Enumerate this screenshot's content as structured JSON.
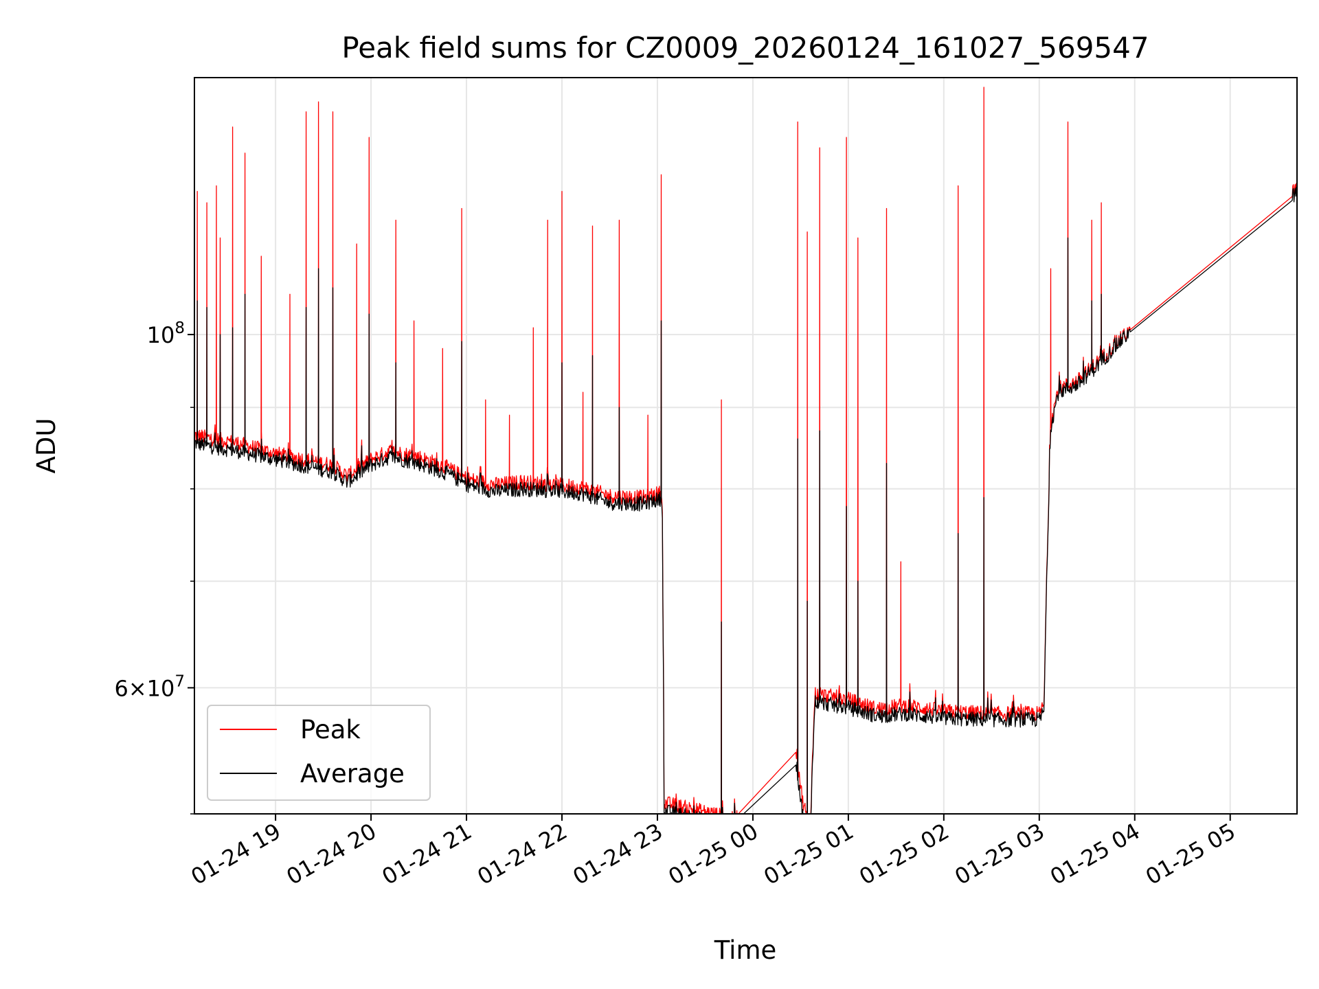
{
  "chart_data": {
    "type": "line",
    "title": "Peak field sums for CZ0009_20260124_161027_569547",
    "xlabel": "Time",
    "ylabel": "ADU",
    "yscale": "log",
    "ylim": [
      50000000,
      145000000
    ],
    "xlim_hours": [
      18.15,
      29.7
    ],
    "x_ticks": [
      {
        "hour": 19,
        "label": "01-24 19"
      },
      {
        "hour": 20,
        "label": "01-24 20"
      },
      {
        "hour": 21,
        "label": "01-24 21"
      },
      {
        "hour": 22,
        "label": "01-24 22"
      },
      {
        "hour": 23,
        "label": "01-24 23"
      },
      {
        "hour": 24,
        "label": "01-25 00"
      },
      {
        "hour": 25,
        "label": "01-25 01"
      },
      {
        "hour": 26,
        "label": "01-25 02"
      },
      {
        "hour": 27,
        "label": "01-25 03"
      },
      {
        "hour": 28,
        "label": "01-25 04"
      },
      {
        "hour": 29,
        "label": "01-25 05"
      }
    ],
    "y_major_ticks": [
      {
        "value": 100000000,
        "base": "10",
        "exp": "8"
      },
      {
        "value": 60000000,
        "mant": "6",
        "base": "10",
        "exp": "7"
      }
    ],
    "y_minor_gridlines": [
      50000000,
      70000000,
      80000000,
      90000000
    ],
    "grid": true,
    "legend_position": "lower-left",
    "series": [
      {
        "name": "Peak",
        "color": "#ff0000",
        "baseline": [
          [
            18.15,
            86500000
          ],
          [
            18.35,
            86000000
          ],
          [
            18.6,
            85500000
          ],
          [
            19.0,
            84200000
          ],
          [
            19.3,
            83500000
          ],
          [
            19.6,
            82800000
          ],
          [
            19.75,
            81500000
          ],
          [
            20.0,
            83500000
          ],
          [
            20.2,
            84500000
          ],
          [
            20.5,
            83800000
          ],
          [
            20.8,
            82500000
          ],
          [
            21.0,
            81200000
          ],
          [
            21.3,
            80500000
          ],
          [
            21.6,
            80800000
          ],
          [
            21.9,
            80500000
          ],
          [
            22.2,
            80200000
          ],
          [
            22.5,
            79200000
          ],
          [
            22.85,
            79000000
          ],
          [
            23.05,
            79600000
          ],
          [
            23.07,
            50800000
          ],
          [
            23.4,
            50300000
          ],
          [
            23.6,
            50000000
          ],
          [
            23.8,
            49600000
          ],
          [
            24.45,
            55000000
          ],
          [
            24.52,
            51000000
          ],
          [
            24.6,
            49000000
          ],
          [
            24.65,
            59500000
          ],
          [
            25.0,
            59000000
          ],
          [
            25.3,
            58200000
          ],
          [
            25.6,
            58500000
          ],
          [
            26.0,
            58000000
          ],
          [
            26.5,
            57800000
          ],
          [
            27.0,
            57800000
          ],
          [
            27.05,
            58500000
          ],
          [
            27.12,
            88000000
          ],
          [
            27.2,
            92500000
          ],
          [
            27.4,
            93500000
          ],
          [
            27.6,
            96000000
          ],
          [
            27.9,
            100000000
          ],
          [
            29.7,
            123500000
          ]
        ],
        "spikes": [
          [
            18.18,
            123000000
          ],
          [
            18.28,
            121000000
          ],
          [
            18.38,
            124000000
          ],
          [
            18.42,
            115000000
          ],
          [
            18.55,
            135000000
          ],
          [
            18.68,
            130000000
          ],
          [
            18.85,
            112000000
          ],
          [
            19.15,
            106000000
          ],
          [
            19.32,
            138000000
          ],
          [
            19.45,
            140000000
          ],
          [
            19.6,
            138000000
          ],
          [
            19.85,
            114000000
          ],
          [
            19.98,
            133000000
          ],
          [
            20.26,
            118000000
          ],
          [
            20.45,
            102000000
          ],
          [
            20.75,
            98000000
          ],
          [
            20.95,
            120000000
          ],
          [
            21.2,
            91000000
          ],
          [
            21.45,
            89000000
          ],
          [
            21.7,
            101000000
          ],
          [
            21.85,
            118000000
          ],
          [
            22.0,
            123000000
          ],
          [
            22.22,
            92000000
          ],
          [
            22.32,
            117000000
          ],
          [
            22.6,
            118000000
          ],
          [
            22.9,
            89000000
          ],
          [
            23.04,
            126000000
          ],
          [
            23.67,
            91000000
          ],
          [
            24.47,
            136000000
          ],
          [
            24.57,
            116000000
          ],
          [
            24.7,
            131000000
          ],
          [
            24.98,
            133000000
          ],
          [
            25.1,
            115000000
          ],
          [
            25.4,
            120000000
          ],
          [
            25.55,
            72000000
          ],
          [
            26.15,
            124000000
          ],
          [
            26.42,
            143000000
          ],
          [
            27.12,
            110000000
          ],
          [
            27.3,
            136000000
          ],
          [
            27.55,
            118000000
          ],
          [
            27.65,
            121000000
          ]
        ]
      },
      {
        "name": "Average",
        "color": "#000000",
        "baseline": [
          [
            18.15,
            85500000
          ],
          [
            18.35,
            85000000
          ],
          [
            18.6,
            84500000
          ],
          [
            19.0,
            83500000
          ],
          [
            19.3,
            82700000
          ],
          [
            19.6,
            82000000
          ],
          [
            19.75,
            80800000
          ],
          [
            20.0,
            82800000
          ],
          [
            20.2,
            83800000
          ],
          [
            20.5,
            83000000
          ],
          [
            20.8,
            81800000
          ],
          [
            21.0,
            80500000
          ],
          [
            21.3,
            79700000
          ],
          [
            21.6,
            80000000
          ],
          [
            21.9,
            79800000
          ],
          [
            22.2,
            79500000
          ],
          [
            22.5,
            78400000
          ],
          [
            22.85,
            78300000
          ],
          [
            23.05,
            78900000
          ],
          [
            23.07,
            50200000
          ],
          [
            23.4,
            49700000
          ],
          [
            23.6,
            49400000
          ],
          [
            23.8,
            49300000
          ],
          [
            24.45,
            54000000
          ],
          [
            24.52,
            50000000
          ],
          [
            24.6,
            48600000
          ],
          [
            24.65,
            58800000
          ],
          [
            25.0,
            58300000
          ],
          [
            25.3,
            57600000
          ],
          [
            25.6,
            57800000
          ],
          [
            26.0,
            57400000
          ],
          [
            26.5,
            57300000
          ],
          [
            27.0,
            57300000
          ],
          [
            27.05,
            58000000
          ],
          [
            27.12,
            87500000
          ],
          [
            27.2,
            92000000
          ],
          [
            27.4,
            93000000
          ],
          [
            27.6,
            95500000
          ],
          [
            27.9,
            99700000
          ],
          [
            29.7,
            122800000
          ]
        ],
        "spikes": [
          [
            18.18,
            105000000
          ],
          [
            18.28,
            104000000
          ],
          [
            18.42,
            100000000
          ],
          [
            18.55,
            101000000
          ],
          [
            18.68,
            106000000
          ],
          [
            19.32,
            104000000
          ],
          [
            19.45,
            110000000
          ],
          [
            19.6,
            107000000
          ],
          [
            19.98,
            103000000
          ],
          [
            20.26,
            96000000
          ],
          [
            20.95,
            99000000
          ],
          [
            22.0,
            96000000
          ],
          [
            22.32,
            97000000
          ],
          [
            22.6,
            90000000
          ],
          [
            23.04,
            102000000
          ],
          [
            23.67,
            66000000
          ],
          [
            24.47,
            86000000
          ],
          [
            24.57,
            68000000
          ],
          [
            24.7,
            87000000
          ],
          [
            24.98,
            78000000
          ],
          [
            25.1,
            70000000
          ],
          [
            25.4,
            83000000
          ],
          [
            26.15,
            75000000
          ],
          [
            26.42,
            79000000
          ],
          [
            27.3,
            115000000
          ],
          [
            27.55,
            105000000
          ],
          [
            27.65,
            106000000
          ]
        ]
      }
    ]
  }
}
